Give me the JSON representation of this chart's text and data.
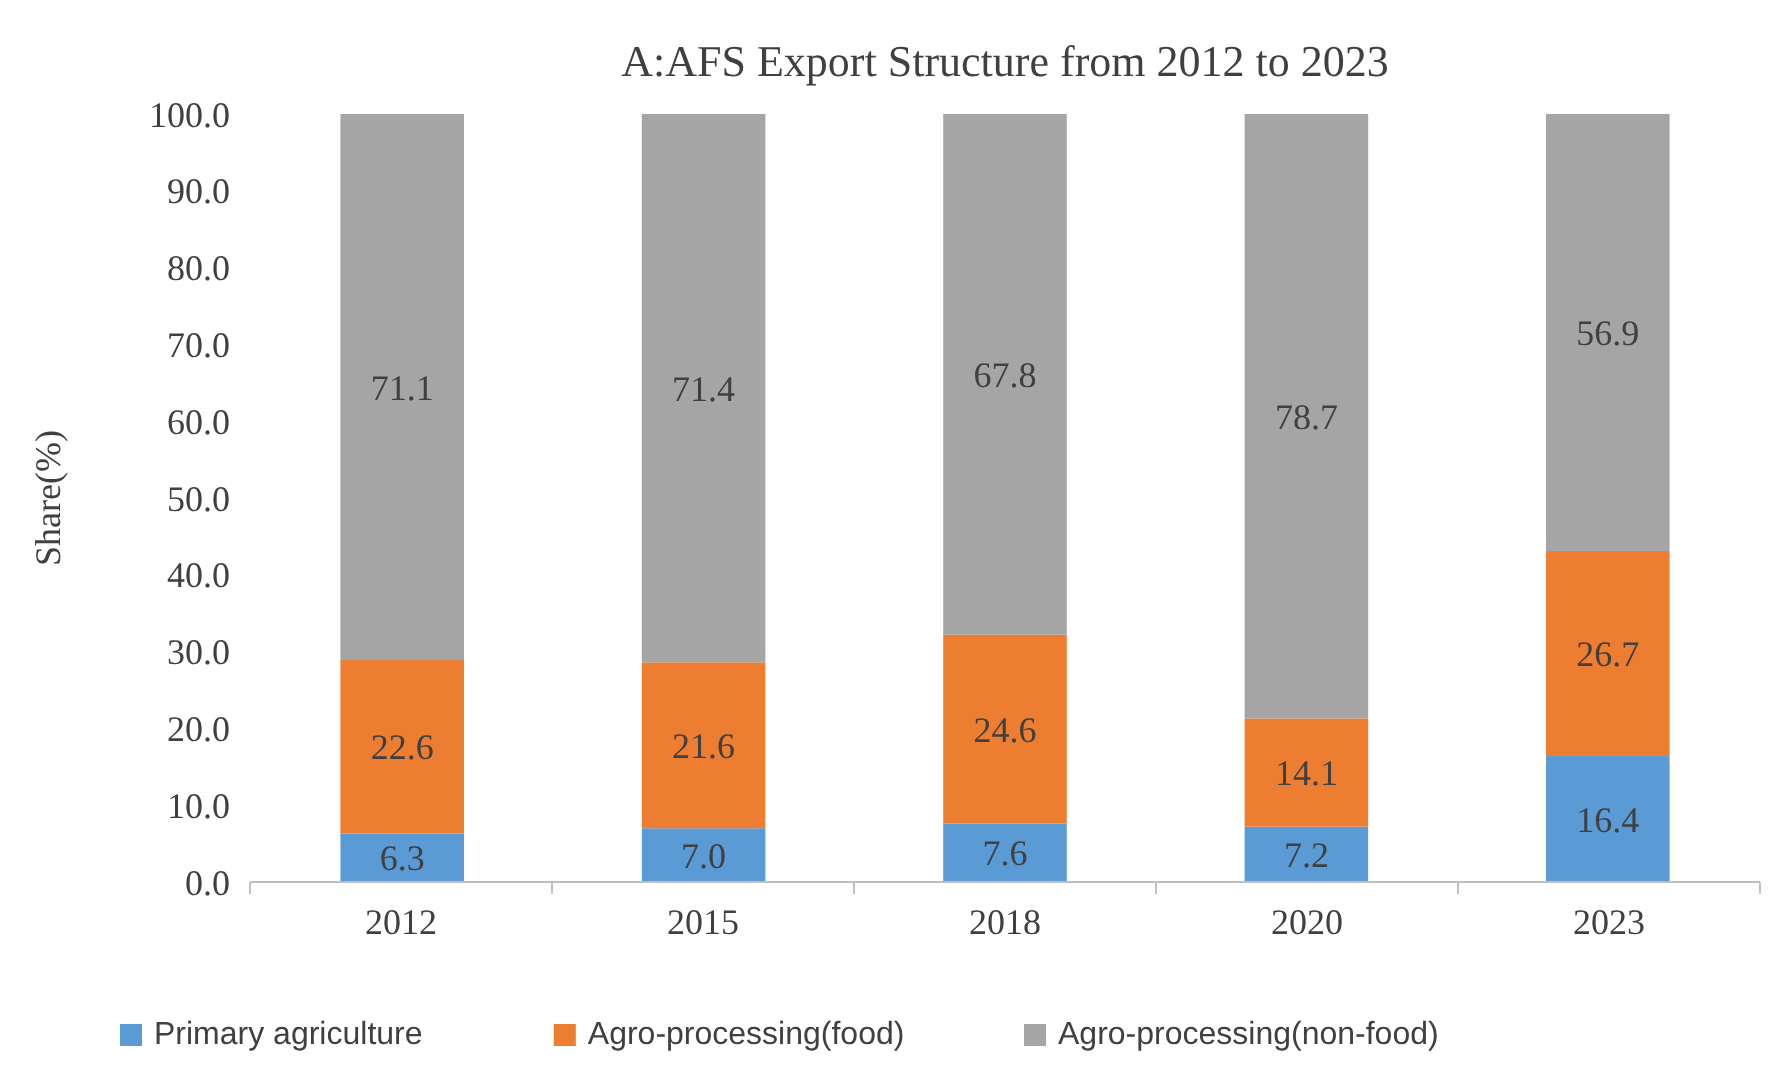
{
  "chart_data": {
    "type": "bar",
    "title": "A:AFS Export Structure from 2012 to 2023",
    "ylabel": "Share(%)",
    "stacked": true,
    "categories": [
      "2012",
      "2015",
      "2018",
      "2020",
      "2023"
    ],
    "series": [
      {
        "name": "Primary agriculture",
        "color": "#5b9bd5",
        "values": [
          6.3,
          7.0,
          7.6,
          7.2,
          16.4
        ],
        "value_labels": [
          "6.3",
          "7.0",
          "7.6",
          "7.2",
          "16.4"
        ]
      },
      {
        "name": "Agro-processing(food)",
        "color": "#ed7d31",
        "values": [
          22.6,
          21.6,
          24.6,
          14.1,
          26.7
        ],
        "value_labels": [
          "22.6",
          "21.6",
          "24.6",
          "14.1",
          "26.7"
        ]
      },
      {
        "name": "Agro-processing(non-food)",
        "color": "#a5a5a5",
        "values": [
          71.1,
          71.4,
          67.8,
          78.7,
          56.9
        ],
        "value_labels": [
          "71.1",
          "71.4",
          "67.8",
          "78.7",
          "56.9"
        ]
      }
    ],
    "ylim": [
      0,
      100
    ],
    "yticks": [
      {
        "value": 0,
        "label": "0.0"
      },
      {
        "value": 10,
        "label": "10.0"
      },
      {
        "value": 20,
        "label": "20.0"
      },
      {
        "value": 30,
        "label": "30.0"
      },
      {
        "value": 40,
        "label": "40.0"
      },
      {
        "value": 50,
        "label": "50.0"
      },
      {
        "value": 60,
        "label": "60.0"
      },
      {
        "value": 70,
        "label": "70.0"
      },
      {
        "value": 80,
        "label": "80.0"
      },
      {
        "value": 90,
        "label": "90.0"
      },
      {
        "value": 100,
        "label": "100.0"
      }
    ],
    "legend": "bottom"
  }
}
